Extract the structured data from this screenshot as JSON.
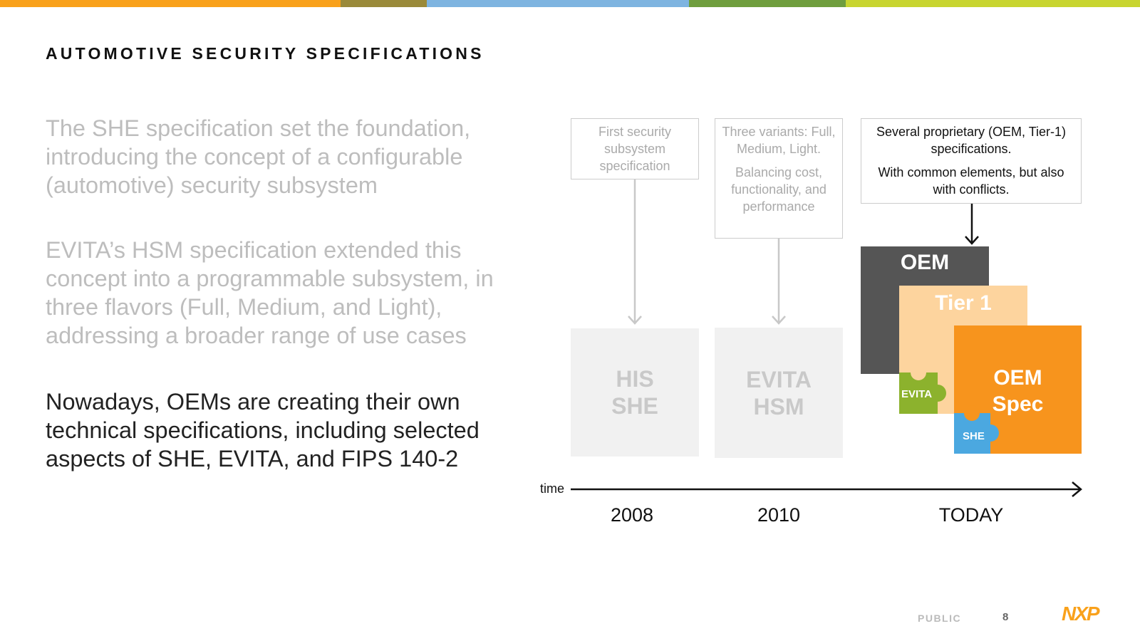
{
  "header": {
    "title": "AUTOMOTIVE SECURITY SPECIFICATIONS"
  },
  "paragraphs": [
    "The SHE specification set the foundation, introducing the concept of a configurable (automotive) security subsystem",
    "EVITA’s HSM specification extended this concept into a programmable subsystem, in three flavors (Full, Medium, and Light), addressing a broader range of use cases",
    "Nowadays, OEMs are creating their own technical specifications, including selected aspects of SHE, EVITA, and FIPS 140-2"
  ],
  "timeline": {
    "axis_label": "time",
    "eras": [
      {
        "year": "2008",
        "note": [
          "First security subsystem specification"
        ],
        "box": [
          "HIS",
          "SHE"
        ]
      },
      {
        "year": "2010",
        "note": [
          "Three variants: Full, Medium, Light.",
          "Balancing cost, functionality, and performance"
        ],
        "box": [
          "EVITA",
          "HSM"
        ]
      },
      {
        "year": "TODAY",
        "note": [
          "Several proprietary (OEM, Tier-1) specifications.",
          "With common elements, but also with conflicts."
        ],
        "blocks": [
          "OEM",
          "Tier 1"
        ],
        "spec": [
          "OEM",
          "Spec"
        ],
        "pieces": [
          "EVITA",
          "SHE"
        ]
      }
    ]
  },
  "footer": {
    "classification": "PUBLIC",
    "page": "8",
    "logo": "NXP"
  }
}
